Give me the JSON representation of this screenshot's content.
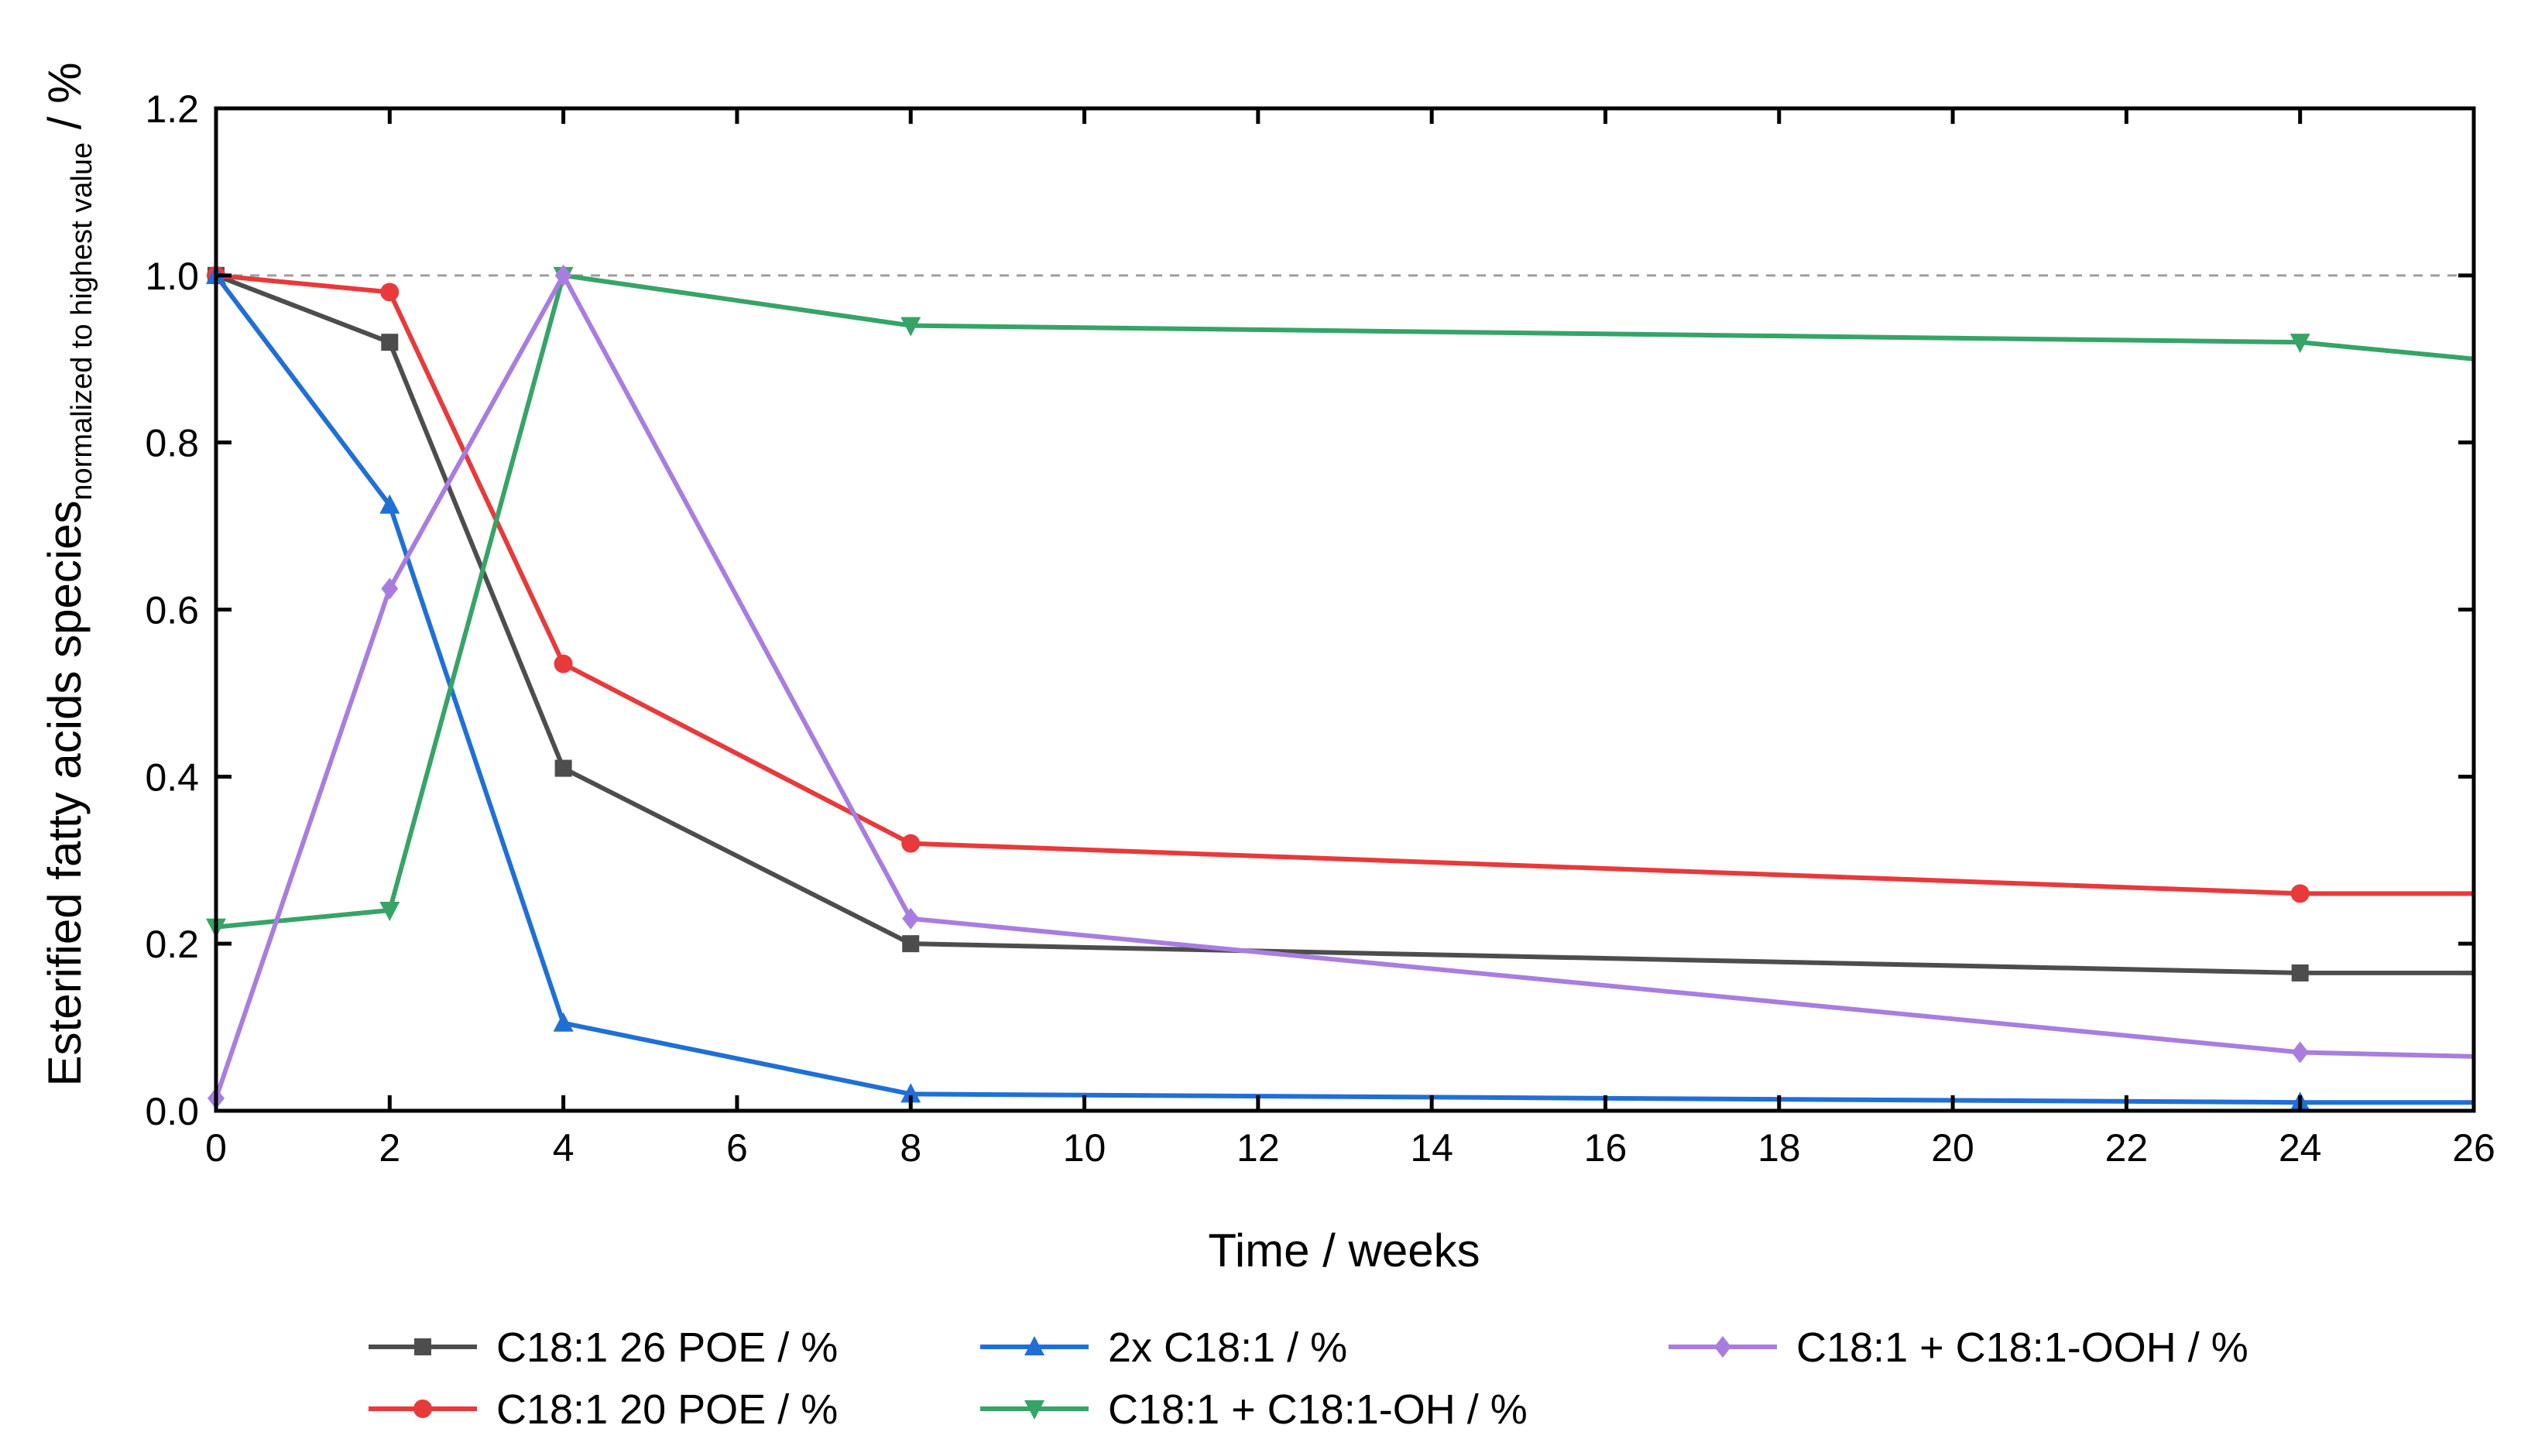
{
  "chart_data": {
    "type": "line",
    "title": "",
    "xlabel": "Time / weeks",
    "ylabel": {
      "main": "Esterified fatty acids species",
      "subscript": "normalized to highest value",
      "unit": " / %"
    },
    "xlim": [
      0,
      26
    ],
    "ylim": [
      0,
      1.2
    ],
    "xticks": [
      0,
      2,
      4,
      6,
      8,
      10,
      12,
      14,
      16,
      18,
      20,
      22,
      24,
      26
    ],
    "yticks": [
      0.0,
      0.2,
      0.4,
      0.6,
      0.8,
      1.0,
      1.2
    ],
    "ytick_labels": [
      "0.0",
      "0.2",
      "0.4",
      "0.6",
      "0.8",
      "1.0",
      "1.2"
    ],
    "reference_line": {
      "y": 1.0,
      "style": "dashed",
      "color": "#9e9e9e"
    },
    "legend_position": "bottom",
    "series": [
      {
        "name": "C18:1 26 POE / %",
        "color": "#4d4d4d",
        "marker": "square",
        "x": [
          0,
          2,
          4,
          8,
          24,
          26
        ],
        "y": [
          1.0,
          0.92,
          0.41,
          0.2,
          0.165,
          0.165
        ],
        "markers_shown": [
          true,
          true,
          true,
          true,
          true,
          false
        ]
      },
      {
        "name": "C18:1 20 POE / %",
        "color": "#e8393b",
        "marker": "circle",
        "x": [
          0,
          2,
          4,
          8,
          24,
          26
        ],
        "y": [
          1.0,
          0.98,
          0.535,
          0.32,
          0.26,
          0.26
        ],
        "markers_shown": [
          true,
          true,
          true,
          true,
          true,
          false
        ]
      },
      {
        "name": "2x C18:1 / %",
        "color": "#1f6fd6",
        "marker": "triangle-up",
        "x": [
          0,
          2,
          4,
          8,
          24,
          26
        ],
        "y": [
          1.0,
          0.725,
          0.105,
          0.02,
          0.01,
          0.01
        ],
        "markers_shown": [
          true,
          true,
          true,
          true,
          true,
          false
        ]
      },
      {
        "name": "C18:1 + C18:1-OH / %",
        "color": "#36a467",
        "marker": "triangle-down",
        "x": [
          0,
          2,
          4,
          8,
          24,
          26
        ],
        "y": [
          0.22,
          0.24,
          1.0,
          0.94,
          0.92,
          0.9
        ],
        "markers_shown": [
          true,
          true,
          true,
          true,
          true,
          false
        ]
      },
      {
        "name": "C18:1 + C18:1-OOH / %",
        "color": "#a97de0",
        "marker": "diamond",
        "x": [
          0,
          2,
          4,
          8,
          24,
          26
        ],
        "y": [
          0.015,
          0.625,
          1.0,
          0.23,
          0.07,
          0.065
        ],
        "markers_shown": [
          true,
          true,
          true,
          true,
          true,
          false
        ]
      }
    ]
  }
}
